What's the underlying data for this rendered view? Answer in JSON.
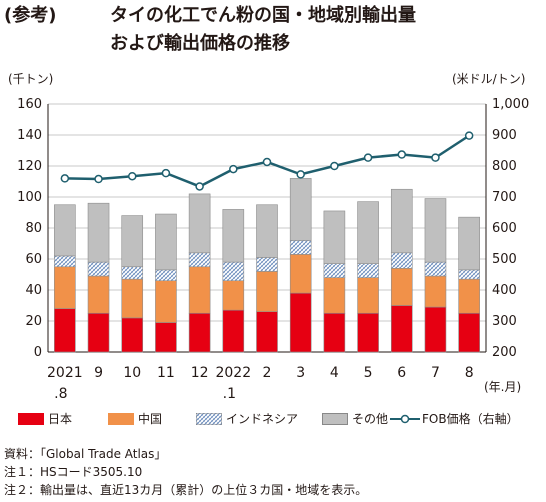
{
  "title": {
    "prefix": "(参考)",
    "line1": "タイの化工でん粉の国・地域別輸出量",
    "line2": "および輸出価格の推移"
  },
  "units": {
    "left": "(千トン)",
    "right": "(米ドル/トン)",
    "x": "(年.月)"
  },
  "notes": [
    "資料：「Global Trade Atlas」",
    "注１：HSコード3505.10",
    "注２：輸出量は、直近13カ月（累計）の上位３カ国・地域を表示。"
  ],
  "legend": [
    {
      "label": "日本",
      "color": "#e60012",
      "pattern": false
    },
    {
      "label": "中国",
      "color": "#f19149",
      "pattern": false
    },
    {
      "label": "インドネシア",
      "color": "#ffffff",
      "pattern": true
    },
    {
      "label": "その他",
      "color": "#bfbfbf",
      "pattern": false
    },
    {
      "label": "FOB価格（右軸）",
      "color": "#1f5f6e",
      "line": true
    }
  ],
  "chart_data": {
    "type": "bar",
    "stacked": true,
    "categories": [
      [
        "2021",
        ".8"
      ],
      [
        "9",
        ""
      ],
      [
        "10",
        ""
      ],
      [
        "11",
        ""
      ],
      [
        "12",
        ""
      ],
      [
        "2022",
        ".1"
      ],
      [
        "2",
        ""
      ],
      [
        "3",
        ""
      ],
      [
        "4",
        ""
      ],
      [
        "5",
        ""
      ],
      [
        "6",
        ""
      ],
      [
        "7",
        ""
      ],
      [
        "8",
        ""
      ]
    ],
    "series": [
      {
        "name": "日本",
        "color": "#e60012",
        "values": [
          28,
          25,
          22,
          19,
          25,
          27,
          26,
          38,
          25,
          25,
          30,
          29,
          25
        ]
      },
      {
        "name": "中国",
        "color": "#f19149",
        "values": [
          27,
          24,
          25,
          27,
          30,
          19,
          26,
          25,
          23,
          23,
          24,
          20,
          22
        ]
      },
      {
        "name": "インドネシア",
        "color": "#ffffff",
        "pattern": true,
        "values": [
          7,
          9,
          8,
          7,
          9,
          12,
          9,
          9,
          9,
          9,
          10,
          9,
          6
        ]
      },
      {
        "name": "その他",
        "color": "#bfbfbf",
        "values": [
          33,
          38,
          33,
          36,
          38,
          34,
          34,
          40,
          34,
          40,
          41,
          41,
          34
        ]
      }
    ],
    "line_series": {
      "name": "FOB価格（右軸）",
      "color": "#1f5f6e",
      "axis": "right",
      "values": [
        760,
        758,
        767,
        777,
        734,
        790,
        813,
        773,
        800,
        827,
        837,
        827,
        898
      ]
    },
    "ylim_left": [
      0,
      160
    ],
    "yticks_left": [
      "0",
      "20",
      "40",
      "60",
      "80",
      "100",
      "120",
      "140",
      "160"
    ],
    "ylim_right": [
      200,
      1000
    ],
    "yticks_right": [
      "200",
      "300",
      "400",
      "500",
      "600",
      "700",
      "800",
      "900",
      "1,000"
    ],
    "grid": true,
    "legend_position": "bottom"
  }
}
